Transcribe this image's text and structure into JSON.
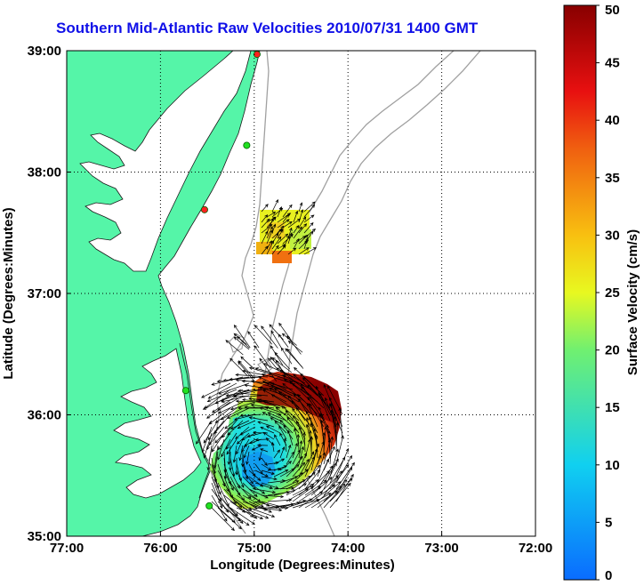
{
  "title": "Southern Mid-Atlantic Raw Velocities 2010/07/31 1400 GMT",
  "xlabel": "Longitude (Degrees:Minutes)",
  "ylabel": "Latitude (Degrees:Minutes)",
  "x_ticks": [
    "77:00",
    "76:00",
    "75:00",
    "74:00",
    "73:00",
    "72:00"
  ],
  "y_ticks": [
    "39:00",
    "38:00",
    "37:00",
    "36:00",
    "35:00"
  ],
  "colorbar": {
    "label": "Surface Velocity (cm/s)",
    "ticks": [
      "0",
      "5",
      "10",
      "15",
      "20",
      "25",
      "30",
      "35",
      "40",
      "45",
      "50"
    ],
    "range": [
      0,
      50
    ]
  },
  "colors": {
    "land": "#55f5a8",
    "title": "#1010e8",
    "coast": "#222222",
    "isobath": "#a0a0a0"
  },
  "map": {
    "lon_range": [
      -77,
      -72
    ],
    "lat_range": [
      35,
      39
    ],
    "grid": "dotted",
    "markers": [
      {
        "lon": -74.97,
        "lat": 38.97,
        "color": "#ff2020"
      },
      {
        "lon": -75.08,
        "lat": 38.22,
        "color": "#20e020"
      },
      {
        "lon": -75.53,
        "lat": 37.69,
        "color": "#ff2020"
      },
      {
        "lon": -75.73,
        "lat": 36.2,
        "color": "#20e020"
      },
      {
        "lon": -75.48,
        "lat": 35.25,
        "color": "#20e020"
      }
    ]
  }
}
